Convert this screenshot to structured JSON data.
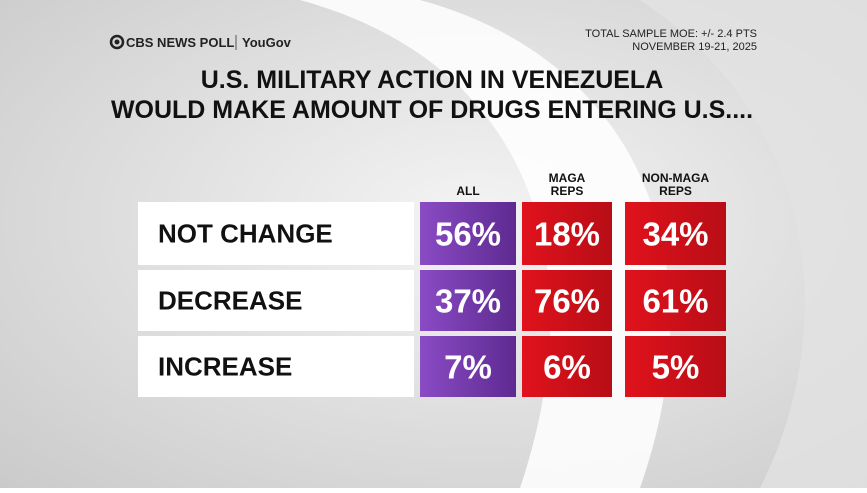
{
  "header": {
    "brand": "CBS NEWS POLL",
    "partner": "YouGov",
    "moe": "TOTAL SAMPLE MOE: +/- 2.4 PTS",
    "date": "NOVEMBER 19-21, 2025"
  },
  "title": [
    "U.S. MILITARY ACTION IN VENEZUELA",
    "WOULD MAKE AMOUNT OF DRUGS ENTERING U.S...."
  ],
  "table": {
    "columns": [
      [
        "ALL"
      ],
      [
        "MAGA",
        "REPS"
      ],
      [
        "NON-MAGA",
        "REPS"
      ]
    ],
    "rows": [
      [
        "NOT CHANGE",
        "56%",
        "18%",
        "34%"
      ],
      [
        "DECREASE",
        "37%",
        "76%",
        "61%"
      ],
      [
        "INCREASE",
        "7%",
        "6%",
        "5%"
      ]
    ]
  }
}
